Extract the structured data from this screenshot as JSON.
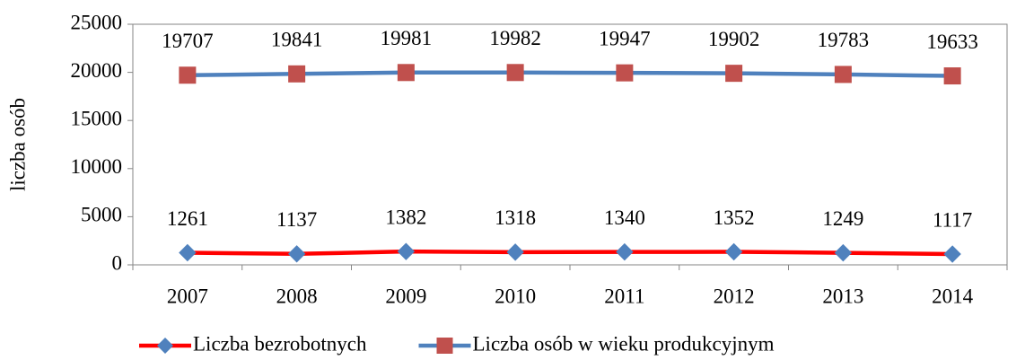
{
  "chart_data": {
    "type": "line",
    "y_label": "liczba osób",
    "categories": [
      "2007",
      "2008",
      "2009",
      "2010",
      "2011",
      "2012",
      "2013",
      "2014"
    ],
    "series": [
      {
        "name": "Liczba bezrobotnych",
        "color": "#ff0000",
        "marker": "diamond",
        "marker_color": "#4f81bd",
        "values": [
          1261,
          1137,
          1382,
          1318,
          1340,
          1352,
          1249,
          1117
        ]
      },
      {
        "name": "Liczba osób w wieku produkcyjnym",
        "color": "#4f81bd",
        "marker": "square",
        "marker_color": "#c0504d",
        "values": [
          19707,
          19841,
          19981,
          19982,
          19947,
          19902,
          19783,
          19633
        ]
      }
    ],
    "ylim": [
      0,
      25000
    ],
    "yticks": [
      0,
      5000,
      10000,
      15000,
      20000,
      25000
    ],
    "grid": false,
    "legend": "bottom"
  }
}
